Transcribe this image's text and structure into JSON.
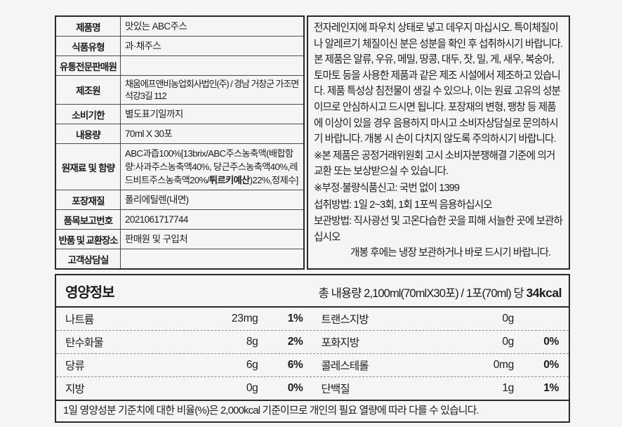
{
  "product_table": {
    "rows": [
      {
        "label": "제품명",
        "value": "맛있는 ABC주스"
      },
      {
        "label": "식품유형",
        "value": "과·채주스"
      },
      {
        "label": "유통전문판매원",
        "value": ""
      },
      {
        "label": "제조원",
        "value": "채움에프앤비농업회사법인(주) / 경남 거창군 가조면 석강3길 112"
      },
      {
        "label": "소비기한",
        "value": "별도표기일까지"
      },
      {
        "label": "내용량",
        "value": "70ml X 30포"
      },
      {
        "label": "원재료 및 함량",
        "value_pre": "ABC과즙100%[13brix/ABC주스농축액(배합함량:사과주스농축액40%, 당근주스농축액40%,레드비트주스농축액20%/",
        "value_bold": "튀르키예산",
        "value_post": ")22%,정제수]"
      },
      {
        "label": "포장재질",
        "value": "폴리에틸렌(내면)"
      },
      {
        "label": "품목보고번호",
        "value": "2021061717744"
      },
      {
        "label": "반품 및 교환장소",
        "value": "판매원 및 구입처"
      },
      {
        "label": "고객상담실",
        "value": ""
      }
    ]
  },
  "notice_panel": {
    "paragraphs": [
      "전자레인지에 파우치 상태로 넣고 데우지 마십시오. 특이체질이나 알레르기 체질이신 분은 성분을 확인 후 섭취하시기 바랍니다. 본 제품은 알류, 우유, 메밀, 땅콩, 대두, 잣, 밀, 게, 새우, 복숭아, 토마토 등을 사용한 제품과 같은 제조 시설에서 제조하고 있습니다. 제품 특성상  침전물이 생길 수 있으나, 이는 원료 고유의 성분이므로 안심하시고 드시면 됩니다. 포장재의 변형, 팽창 등 제품에 이상이 있을 경우 음용하지 마시고 소비자상담실로 문의하시기 바랍니다. 개봉 시 손이 다치지 않도록 주의하시기 바랍니다.",
      "※본 제품은 공정거래위원회 고시 소비자분쟁해결 기준에 의거 교환 또는 보상받으실 수 있습니다.",
      "※부정·불량식품신고: 국번 없이 1399",
      "섭취방법: 1일 2~3회, 1회 1포씩 음용하십시오",
      "보관방법: 직사광선 및 고온다습한 곳을 피해 서늘한 곳에 보관하십시오",
      "개봉 후에는 냉장 보관하거나 바로 드시기 바랍니다."
    ]
  },
  "nutrition": {
    "title": "영양정보",
    "serving_pre": "총 내용량 2,100ml(70mlX30포) / 1포(70ml) 당 ",
    "serving_kcal": "34kcal",
    "rows": [
      {
        "left": {
          "name": "나트륨",
          "amount": "23mg",
          "pct": "1%"
        },
        "right": {
          "name": "트랜스지방",
          "amount": "0g",
          "pct": ""
        }
      },
      {
        "left": {
          "name": "탄수화물",
          "amount": "8g",
          "pct": "2%"
        },
        "right": {
          "name": "포화지방",
          "amount": "0g",
          "pct": "0%"
        }
      },
      {
        "left": {
          "name": "당류",
          "amount": "6g",
          "pct": "6%"
        },
        "right": {
          "name": "콜레스테롤",
          "amount": "0mg",
          "pct": "0%"
        }
      },
      {
        "left": {
          "name": "지방",
          "amount": "0g",
          "pct": "0%"
        },
        "right": {
          "name": "단백질",
          "amount": "1g",
          "pct": "1%"
        }
      }
    ],
    "footnote": "1일 영양성분 기준치에 대한 비율(%)은 2,000kcal 기준이므로 개인의 필요 열량에 따라 다를 수 있습니다."
  }
}
